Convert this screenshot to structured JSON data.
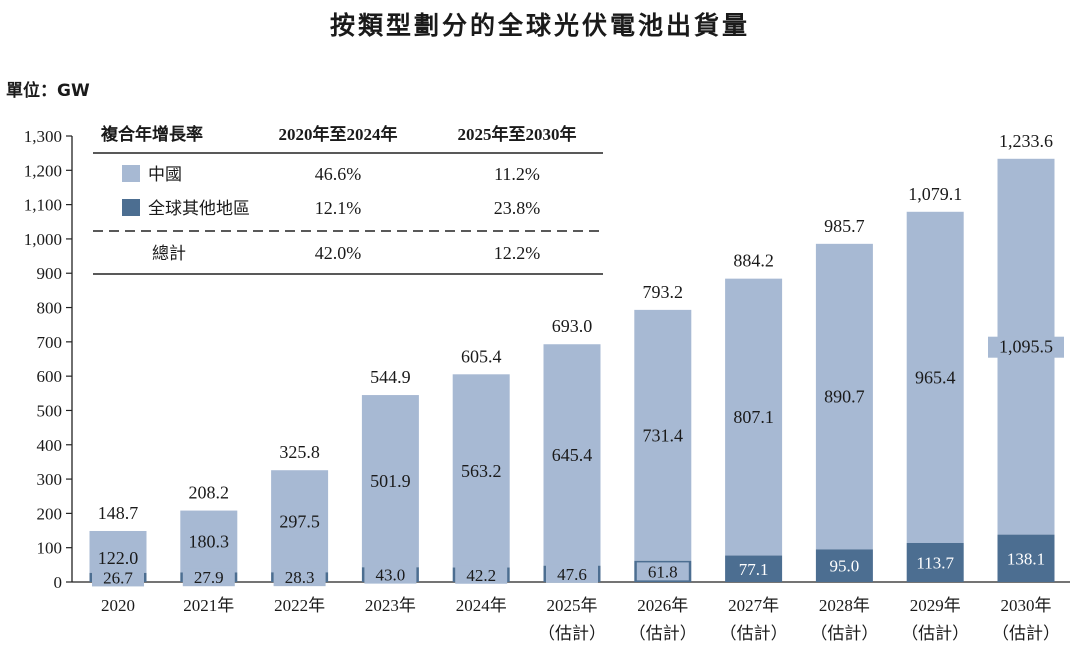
{
  "title": "按類型劃分的全球光伏電池出貨量",
  "unit_label": "單位：GW",
  "colors": {
    "china": "#a7b9d3",
    "rest": "#4c6e91",
    "axis": "#222222",
    "text": "#1a1a1a"
  },
  "growth_table": {
    "header": {
      "label": "複合年增長率",
      "col1": "2020年至2024年",
      "col2": "2025年至2030年"
    },
    "rows": [
      {
        "label": "中國",
        "col1": "46.6%",
        "col2": "11.2%",
        "swatch": "china"
      },
      {
        "label": "全球其他地區",
        "col1": "12.1%",
        "col2": "23.8%",
        "swatch": "rest"
      },
      {
        "label": "總計",
        "col1": "42.0%",
        "col2": "12.2%",
        "swatch": ""
      }
    ]
  },
  "chart_data": {
    "type": "bar",
    "stacked": true,
    "ylim": [
      0,
      1300
    ],
    "yticks": [
      "0",
      "100",
      "200",
      "300",
      "400",
      "500",
      "600",
      "700",
      "800",
      "900",
      "1,000",
      "1,100",
      "1,200",
      "1,300"
    ],
    "categories": [
      {
        "year": "2020",
        "note": ""
      },
      {
        "year": "2021年",
        "note": ""
      },
      {
        "year": "2022年",
        "note": ""
      },
      {
        "year": "2023年",
        "note": ""
      },
      {
        "year": "2024年",
        "note": ""
      },
      {
        "year": "2025年",
        "note": "（估計）"
      },
      {
        "year": "2026年",
        "note": "（估計）"
      },
      {
        "year": "2027年",
        "note": "（估計）"
      },
      {
        "year": "2028年",
        "note": "（估計）"
      },
      {
        "year": "2029年",
        "note": "（估計）"
      },
      {
        "year": "2030年",
        "note": "（估計）"
      }
    ],
    "series": [
      {
        "name": "全球其他地區",
        "color_key": "rest",
        "values": [
          26.7,
          27.9,
          28.3,
          43.0,
          42.2,
          47.6,
          61.8,
          77.1,
          95.0,
          113.7,
          138.1
        ],
        "labels": [
          "26.7",
          "27.9",
          "28.3",
          "43.0",
          "42.2",
          "47.6",
          "61.8",
          "77.1",
          "95.0",
          "113.7",
          "138.1"
        ]
      },
      {
        "name": "中國",
        "color_key": "china",
        "values": [
          122.0,
          180.3,
          297.5,
          501.9,
          563.2,
          645.4,
          731.4,
          807.1,
          890.7,
          965.4,
          1095.5
        ],
        "labels": [
          "122.0",
          "180.3",
          "297.5",
          "501.9",
          "563.2",
          "645.4",
          "731.4",
          "807.1",
          "890.7",
          "965.4",
          "1,095.5"
        ]
      }
    ],
    "totals": [
      148.7,
      208.2,
      325.8,
      544.9,
      605.4,
      693.0,
      793.2,
      884.2,
      985.7,
      1079.1,
      1233.6
    ],
    "total_labels": [
      "148.7",
      "208.2",
      "325.8",
      "544.9",
      "605.4",
      "693.0",
      "793.2",
      "884.2",
      "985.7",
      "1,079.1",
      "1,233.6"
    ]
  }
}
